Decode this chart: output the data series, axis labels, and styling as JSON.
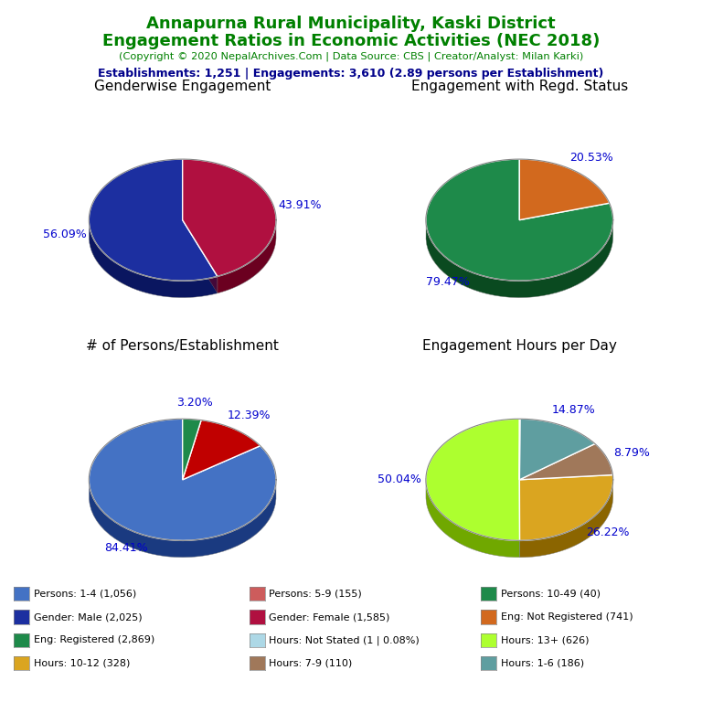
{
  "title_line1": "Annapurna Rural Municipality, Kaski District",
  "title_line2": "Engagement Ratios in Economic Activities (NEC 2018)",
  "subtitle": "(Copyright © 2020 NepalArchives.Com | Data Source: CBS | Creator/Analyst: Milan Karki)",
  "stats_line": "Establishments: 1,251 | Engagements: 3,610 (2.89 persons per Establishment)",
  "title_color": "#008000",
  "subtitle_color": "#008000",
  "stats_color": "#00008B",
  "pie1_title": "Genderwise Engagement",
  "pie1_values": [
    56.09,
    43.91
  ],
  "pie1_colors": [
    "#1C2FA0",
    "#B01040"
  ],
  "pie1_shadow_colors": [
    "#0A1660",
    "#6B0020"
  ],
  "pie1_labels": [
    "56.09%",
    "43.91%"
  ],
  "pie1_startangle": 90,
  "pie2_title": "Engagement with Regd. Status",
  "pie2_values": [
    79.47,
    20.53
  ],
  "pie2_colors": [
    "#1E8A4A",
    "#D2691E"
  ],
  "pie2_shadow_colors": [
    "#0A4A20",
    "#8B3000"
  ],
  "pie2_labels": [
    "79.47%",
    "20.53%"
  ],
  "pie2_startangle": 90,
  "pie3_title": "# of Persons/Establishment",
  "pie3_values": [
    84.41,
    12.39,
    3.2
  ],
  "pie3_colors": [
    "#4472C4",
    "#C00000",
    "#1E8A4A"
  ],
  "pie3_shadow_colors": [
    "#1A3A80",
    "#700000",
    "#0A4A20"
  ],
  "pie3_labels": [
    "84.41%",
    "12.39%",
    "3.20%"
  ],
  "pie3_startangle": 90,
  "pie4_title": "Engagement Hours per Day",
  "pie4_values": [
    50.04,
    26.22,
    8.79,
    14.87,
    0.08
  ],
  "pie4_colors": [
    "#ADFF2F",
    "#DAA520",
    "#A0785A",
    "#5F9EA0",
    "#ADD8E6"
  ],
  "pie4_shadow_colors": [
    "#70A800",
    "#8B6500",
    "#604030",
    "#2F6E70",
    "#80A8C0"
  ],
  "pie4_labels": [
    "50.04%",
    "26.22%",
    "8.79%",
    "14.87%",
    ""
  ],
  "pie4_startangle": 90,
  "label_color": "#0000CD",
  "legend_items": [
    {
      "label": "Persons: 1-4 (1,056)",
      "color": "#4472C4"
    },
    {
      "label": "Persons: 5-9 (155)",
      "color": "#CD5C5C"
    },
    {
      "label": "Persons: 10-49 (40)",
      "color": "#1E8A4A"
    },
    {
      "label": "Gender: Male (2,025)",
      "color": "#1C2FA0"
    },
    {
      "label": "Gender: Female (1,585)",
      "color": "#B01040"
    },
    {
      "label": "Eng: Not Registered (741)",
      "color": "#D2691E"
    },
    {
      "label": "Eng: Registered (2,869)",
      "color": "#1E8A4A"
    },
    {
      "label": "Hours: Not Stated (1 | 0.08%)",
      "color": "#ADD8E6"
    },
    {
      "label": "Hours: 13+ (626)",
      "color": "#ADFF2F"
    },
    {
      "label": "Hours: 10-12 (328)",
      "color": "#DAA520"
    },
    {
      "label": "Hours: 7-9 (110)",
      "color": "#A0785A"
    },
    {
      "label": "Hours: 1-6 (186)",
      "color": "#5F9EA0"
    }
  ]
}
